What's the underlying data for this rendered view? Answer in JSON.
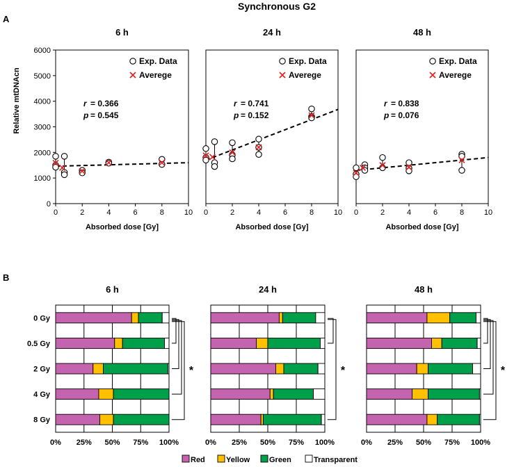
{
  "figure_title": "Synchronous G2",
  "panel_labels": {
    "a": "A",
    "b": "B"
  },
  "colors": {
    "red": "#C463AE",
    "yellow": "#FFC000",
    "green": "#00A04B",
    "transparent": "#FFFFFF",
    "average": "#E02020"
  },
  "chart_data": [
    {
      "type": "scatter",
      "panel": "A",
      "ylabel": "Relative mtDNAcn",
      "xlabel": "Absorbed dose [Gy]",
      "xlim": [
        0,
        10
      ],
      "ylim": [
        0,
        6000
      ],
      "xticks": [
        0,
        2,
        4,
        6,
        8,
        10
      ],
      "yticks": [
        0,
        1000,
        2000,
        3000,
        4000,
        5000,
        6000
      ],
      "legend": [
        "Exp. Data",
        "Averege"
      ],
      "legend_position": "top-right",
      "subplots": [
        {
          "title": "6 h",
          "r_label": "r",
          "p_label": "p",
          "r_text": "= 0.366",
          "p_text": "= 0.545",
          "exp_data": [
            [
              0,
              1850
            ],
            [
              0,
              1500
            ],
            [
              0,
              1420
            ],
            [
              0.5,
              1850
            ],
            [
              0.5,
              1220
            ],
            [
              0.5,
              1130
            ],
            [
              2,
              1300
            ],
            [
              2,
              1200
            ],
            [
              4,
              1620
            ],
            [
              4,
              1580
            ],
            [
              8,
              1730
            ],
            [
              8,
              1530
            ]
          ],
          "average": [
            [
              0,
              1590
            ],
            [
              0.5,
              1400
            ],
            [
              2,
              1270
            ],
            [
              4,
              1600
            ],
            [
              8,
              1600
            ]
          ],
          "trend": [
            [
              0,
              1460
            ],
            [
              10,
              1600
            ]
          ]
        },
        {
          "title": "24 h",
          "r_label": "r",
          "p_label": "p",
          "r_text": "= 0.741",
          "p_text": "= 0.152",
          "exp_data": [
            [
              0,
              2150
            ],
            [
              0,
              1800
            ],
            [
              0,
              1700
            ],
            [
              0.5,
              2420
            ],
            [
              0.5,
              1600
            ],
            [
              0.5,
              1450
            ],
            [
              2,
              2380
            ],
            [
              2,
              1900
            ],
            [
              2,
              1750
            ],
            [
              4,
              2520
            ],
            [
              4,
              2200
            ],
            [
              4,
              1920
            ],
            [
              8,
              3700
            ],
            [
              8,
              3400
            ],
            [
              8,
              3350
            ]
          ],
          "average": [
            [
              0,
              1880
            ],
            [
              0.5,
              1820
            ],
            [
              2,
              2000
            ],
            [
              4,
              2200
            ],
            [
              8,
              3450
            ]
          ],
          "trend": [
            [
              0,
              1700
            ],
            [
              10,
              3680
            ]
          ]
        },
        {
          "title": "48 h",
          "r_label": "r",
          "p_label": "p",
          "r_text": "= 0.838",
          "p_text": "= 0.076",
          "exp_data": [
            [
              0,
              1400
            ],
            [
              0,
              1150
            ],
            [
              0,
              1050
            ],
            [
              0.5,
              1520
            ],
            [
              0.5,
              1400
            ],
            [
              0.5,
              1300
            ],
            [
              2,
              1800
            ],
            [
              2,
              1400
            ],
            [
              4,
              1600
            ],
            [
              4,
              1380
            ],
            [
              4,
              1280
            ],
            [
              8,
              1930
            ],
            [
              8,
              1850
            ],
            [
              8,
              1300
            ]
          ],
          "average": [
            [
              0,
              1200
            ],
            [
              0.5,
              1400
            ],
            [
              2,
              1500
            ],
            [
              4,
              1420
            ],
            [
              8,
              1700
            ]
          ],
          "trend": [
            [
              0,
              1300
            ],
            [
              10,
              1800
            ]
          ]
        }
      ]
    },
    {
      "type": "bar",
      "panel": "B",
      "orientation": "horizontal-stacked-percent",
      "categories": [
        "0 Gy",
        "0.5 Gy",
        "2 Gy",
        "4 Gy",
        "8 Gy"
      ],
      "xticks": [
        "0%",
        "25%",
        "50%",
        "75%",
        "100%"
      ],
      "legend": [
        "Red",
        "Yellow",
        "Green",
        "Transparent"
      ],
      "legend_position": "bottom",
      "significance_label": "*",
      "subplots": [
        {
          "title": "6 h",
          "series": [
            {
              "name": "Red",
              "values": [
                67,
                52,
                33,
                38,
                39
              ]
            },
            {
              "name": "Yellow",
              "values": [
                6,
                7,
                9,
                13,
                12
              ]
            },
            {
              "name": "Green",
              "values": [
                21,
                37,
                57,
                49,
                49
              ]
            },
            {
              "name": "Transparent",
              "values": [
                6,
                4,
                1,
                0,
                0
              ]
            }
          ],
          "brackets_from_0Gy": [
            "0.5 Gy",
            "2 Gy",
            "4 Gy",
            "8 Gy"
          ]
        },
        {
          "title": "24 h",
          "series": [
            {
              "name": "Red",
              "values": [
                60,
                40,
                57,
                52,
                44
              ]
            },
            {
              "name": "Yellow",
              "values": [
                3,
                10,
                7,
                3,
                2
              ]
            },
            {
              "name": "Green",
              "values": [
                29,
                46,
                30,
                35,
                51
              ]
            },
            {
              "name": "Transparent",
              "values": [
                8,
                4,
                6,
                10,
                3
              ]
            }
          ],
          "brackets_from_0Gy": [
            "0.5 Gy",
            "8 Gy"
          ]
        },
        {
          "title": "48 h",
          "series": [
            {
              "name": "Red",
              "values": [
                53,
                57,
                44,
                40,
                53
              ]
            },
            {
              "name": "Yellow",
              "values": [
                20,
                9,
                10,
                14,
                9
              ]
            },
            {
              "name": "Green",
              "values": [
                23,
                31,
                39,
                45,
                37
              ]
            },
            {
              "name": "Transparent",
              "values": [
                4,
                3,
                7,
                1,
                1
              ]
            }
          ],
          "brackets_from_0Gy": [
            "0.5 Gy",
            "2 Gy",
            "4 Gy",
            "8 Gy"
          ]
        }
      ]
    }
  ]
}
